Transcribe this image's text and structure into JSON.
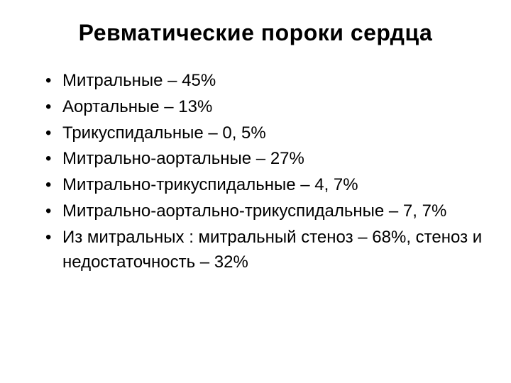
{
  "slide": {
    "title": "Ревматические пороки сердца",
    "title_fontsize": 32,
    "title_fontweight": "bold",
    "title_color": "#000000",
    "background_color": "#ffffff",
    "bullets": [
      "Митральные – 45%",
      "Аортальные – 13%",
      "Трикуспидальные – 0, 5%",
      "Митрально-аортальные – 27%",
      "Митрально-трикуспидальные – 4, 7%",
      "Митрально-аортально-трикуспидальные – 7, 7%",
      "Из митральных : митральный стеноз – 68%, стеноз и недостаточность – 32%"
    ],
    "bullet_fontsize": 24,
    "bullet_color": "#000000",
    "bullet_marker": "•"
  }
}
